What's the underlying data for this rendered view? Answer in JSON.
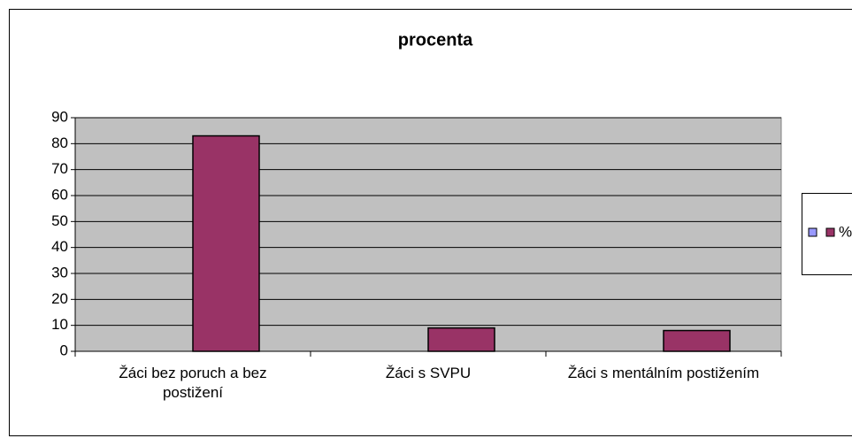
{
  "chart_data": {
    "type": "bar",
    "title": "procenta",
    "categories": [
      "Žáci bez poruch a bez postižení",
      "Žáci s SVPU",
      "Žáci s mentálním postižením"
    ],
    "series": [
      {
        "color": "#9999ff",
        "values": [
          null,
          null,
          null
        ]
      },
      {
        "name": "%",
        "color": "#993366",
        "values": [
          83,
          9,
          8
        ]
      }
    ],
    "ylim": [
      0,
      90
    ],
    "yticks": [
      0,
      10,
      20,
      30,
      40,
      50,
      60,
      70,
      80,
      90
    ],
    "grid": true,
    "legend": "right"
  }
}
